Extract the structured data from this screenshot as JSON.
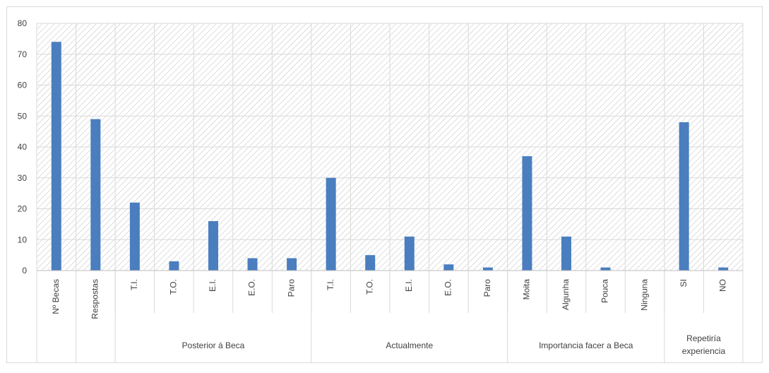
{
  "chart_data": {
    "type": "bar",
    "title": "",
    "xlabel": "",
    "ylabel": "",
    "ylim": [
      0,
      80
    ],
    "yticks": [
      0,
      10,
      20,
      30,
      40,
      50,
      60,
      70,
      80
    ],
    "grid": true,
    "legend": "none",
    "bar_color": "#4a7ebf",
    "categories": [
      "Nº Becas",
      "Respostas",
      "T.I.",
      "T.O.",
      "E.I.",
      "E.O.",
      "Paro",
      "T.I.",
      "T.O.",
      "E.I.",
      "E.O.",
      "Paro",
      "Moita",
      "Algunha",
      "Pouca",
      "Ninguna",
      "SI",
      "NO"
    ],
    "values": [
      74,
      49,
      22,
      3,
      16,
      4,
      4,
      30,
      5,
      11,
      2,
      1,
      37,
      11,
      1,
      0,
      48,
      1
    ],
    "groups": [
      {
        "label": "",
        "categories": [
          "Nº Becas"
        ]
      },
      {
        "label": "",
        "categories": [
          "Respostas"
        ]
      },
      {
        "label": "Posterior á Beca",
        "categories": [
          "T.I.",
          "T.O.",
          "E.I.",
          "E.O.",
          "Paro"
        ]
      },
      {
        "label": "Actualmente",
        "categories": [
          "T.I.",
          "T.O.",
          "E.I.",
          "E.O.",
          "Paro"
        ]
      },
      {
        "label": "Importancia facer a Beca",
        "categories": [
          "Moita",
          "Algunha",
          "Pouca",
          "Ninguna"
        ]
      },
      {
        "label": "Repetiría experiencia",
        "categories": [
          "SI",
          "NO"
        ]
      }
    ]
  }
}
